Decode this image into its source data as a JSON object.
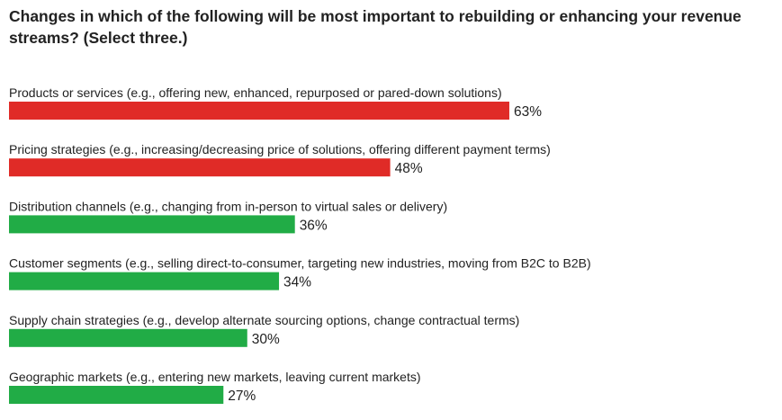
{
  "chart_data": {
    "type": "bar",
    "orientation": "horizontal",
    "title": "Changes in which of the following will be most important to rebuilding or enhancing your revenue streams? (Select three.)",
    "categories": [
      "Products or services (e.g., offering new, enhanced, repurposed or pared-down solutions)",
      "Pricing strategies (e.g., increasing/decreasing price of solutions, offering different payment terms)",
      "Distribution channels (e.g., changing from in-person to virtual sales or delivery)",
      "Customer segments (e.g., selling direct-to-consumer, targeting new industries, moving from B2C to B2B)",
      "Supply chain strategies (e.g., develop alternate sourcing options, change contractual terms)",
      "Geographic markets (e.g., entering new markets, leaving current markets)"
    ],
    "values": [
      63,
      48,
      36,
      34,
      30,
      27
    ],
    "value_labels": [
      "63%",
      "48%",
      "36%",
      "34%",
      "30%",
      "27%"
    ],
    "unit": "%",
    "bar_colors": [
      "#e02b27",
      "#e02b27",
      "#21ac46",
      "#21ac46",
      "#21ac46",
      "#21ac46"
    ],
    "xlim": [
      0,
      100
    ],
    "grid": false,
    "legend": "none"
  }
}
